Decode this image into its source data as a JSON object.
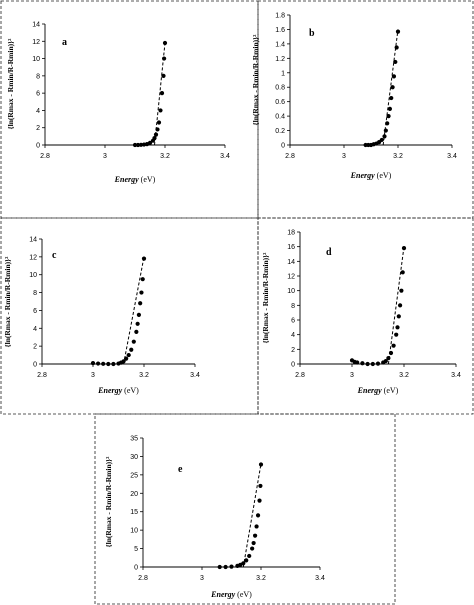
{
  "figure": {
    "xlabel_italic": "Energy",
    "xlabel_unit": "(eV)",
    "ylabel": "{ln(Rmax - Rmin/R-Rmin)}²"
  },
  "chart_data": [
    {
      "type": "scatter",
      "panel": "a",
      "xlim": [
        2.8,
        3.4
      ],
      "ylim": [
        0,
        14
      ],
      "xticks": [
        "2.8",
        "3",
        "3.2",
        "3.4"
      ],
      "yticks": [
        "0",
        "2",
        "4",
        "6",
        "8",
        "10",
        "12",
        "14"
      ],
      "fit_line": [
        [
          3.165,
          0
        ],
        [
          3.2,
          11.8
        ]
      ],
      "points": [
        [
          3.1,
          0.0
        ],
        [
          3.11,
          0.0
        ],
        [
          3.12,
          0.02
        ],
        [
          3.13,
          0.05
        ],
        [
          3.14,
          0.1
        ],
        [
          3.15,
          0.25
        ],
        [
          3.16,
          0.5
        ],
        [
          3.165,
          0.8
        ],
        [
          3.17,
          1.2
        ],
        [
          3.175,
          1.8
        ],
        [
          3.18,
          2.6
        ],
        [
          3.185,
          4.0
        ],
        [
          3.19,
          6.0
        ],
        [
          3.195,
          8.0
        ],
        [
          3.197,
          10.0
        ],
        [
          3.2,
          11.8
        ]
      ]
    },
    {
      "type": "scatter",
      "panel": "b",
      "xlim": [
        2.8,
        3.4
      ],
      "ylim": [
        0,
        1.8
      ],
      "xticks": [
        "2.8",
        "3",
        "3.2",
        "3.4"
      ],
      "yticks": [
        "0",
        "0.2",
        "0.4",
        "0.6",
        "0.8",
        "1",
        "1.2",
        "1.4",
        "1.6",
        "1.8"
      ],
      "fit_line": [
        [
          3.145,
          0
        ],
        [
          3.2,
          1.6
        ]
      ],
      "points": [
        [
          3.08,
          0.0
        ],
        [
          3.09,
          0.0
        ],
        [
          3.1,
          0.0
        ],
        [
          3.11,
          0.01
        ],
        [
          3.12,
          0.02
        ],
        [
          3.13,
          0.04
        ],
        [
          3.14,
          0.07
        ],
        [
          3.15,
          0.12
        ],
        [
          3.155,
          0.2
        ],
        [
          3.16,
          0.3
        ],
        [
          3.165,
          0.4
        ],
        [
          3.17,
          0.5
        ],
        [
          3.175,
          0.65
        ],
        [
          3.18,
          0.8
        ],
        [
          3.185,
          0.95
        ],
        [
          3.19,
          1.15
        ],
        [
          3.195,
          1.35
        ],
        [
          3.2,
          1.57
        ]
      ]
    },
    {
      "type": "scatter",
      "panel": "c",
      "xlim": [
        2.8,
        3.4
      ],
      "ylim": [
        0,
        14
      ],
      "xticks": [
        "2.8",
        "3",
        "3.2",
        "3.4"
      ],
      "yticks": [
        "0",
        "2",
        "4",
        "6",
        "8",
        "10",
        "12",
        "14"
      ],
      "fit_line": [
        [
          3.12,
          0
        ],
        [
          3.2,
          12
        ]
      ],
      "points": [
        [
          3.0,
          0.1
        ],
        [
          3.02,
          0.05
        ],
        [
          3.04,
          0.02
        ],
        [
          3.06,
          0.0
        ],
        [
          3.08,
          0.0
        ],
        [
          3.1,
          0.05
        ],
        [
          3.11,
          0.15
        ],
        [
          3.12,
          0.3
        ],
        [
          3.13,
          0.6
        ],
        [
          3.14,
          1.0
        ],
        [
          3.15,
          1.6
        ],
        [
          3.16,
          2.5
        ],
        [
          3.17,
          3.6
        ],
        [
          3.175,
          4.5
        ],
        [
          3.18,
          5.5
        ],
        [
          3.185,
          6.8
        ],
        [
          3.19,
          8.0
        ],
        [
          3.195,
          9.5
        ],
        [
          3.2,
          11.8
        ]
      ]
    },
    {
      "type": "scatter",
      "panel": "d",
      "xlim": [
        2.8,
        3.4
      ],
      "ylim": [
        0,
        18
      ],
      "xticks": [
        "2.8",
        "3",
        "3.2",
        "3.4"
      ],
      "yticks": [
        "0",
        "2",
        "4",
        "6",
        "8",
        "10",
        "12",
        "14",
        "16",
        "18"
      ],
      "fit_line": [
        [
          3.14,
          0
        ],
        [
          3.2,
          16
        ]
      ],
      "points": [
        [
          3.0,
          0.5
        ],
        [
          3.01,
          0.3
        ],
        [
          3.02,
          0.2
        ],
        [
          3.04,
          0.1
        ],
        [
          3.06,
          0.0
        ],
        [
          3.08,
          0.0
        ],
        [
          3.1,
          0.05
        ],
        [
          3.12,
          0.2
        ],
        [
          3.13,
          0.4
        ],
        [
          3.14,
          0.8
        ],
        [
          3.15,
          1.5
        ],
        [
          3.16,
          2.5
        ],
        [
          3.17,
          4.0
        ],
        [
          3.175,
          5.0
        ],
        [
          3.18,
          6.5
        ],
        [
          3.185,
          8.0
        ],
        [
          3.19,
          10.0
        ],
        [
          3.195,
          12.5
        ],
        [
          3.2,
          15.8
        ]
      ]
    },
    {
      "type": "scatter",
      "panel": "e",
      "xlim": [
        2.8,
        3.4
      ],
      "ylim": [
        0,
        35
      ],
      "xticks": [
        "2.8",
        "3",
        "3.2",
        "3.4"
      ],
      "yticks": [
        "0",
        "5",
        "10",
        "15",
        "20",
        "25",
        "30",
        "35"
      ],
      "fit_line": [
        [
          3.14,
          0
        ],
        [
          3.2,
          28
        ]
      ],
      "points": [
        [
          3.06,
          0.0
        ],
        [
          3.08,
          0.0
        ],
        [
          3.1,
          0.1
        ],
        [
          3.12,
          0.3
        ],
        [
          3.13,
          0.6
        ],
        [
          3.14,
          1.0
        ],
        [
          3.15,
          1.8
        ],
        [
          3.16,
          3.0
        ],
        [
          3.17,
          5.0
        ],
        [
          3.175,
          6.5
        ],
        [
          3.18,
          8.5
        ],
        [
          3.185,
          11.0
        ],
        [
          3.19,
          14.0
        ],
        [
          3.195,
          18.0
        ],
        [
          3.198,
          22.0
        ],
        [
          3.2,
          27.8
        ]
      ]
    }
  ]
}
